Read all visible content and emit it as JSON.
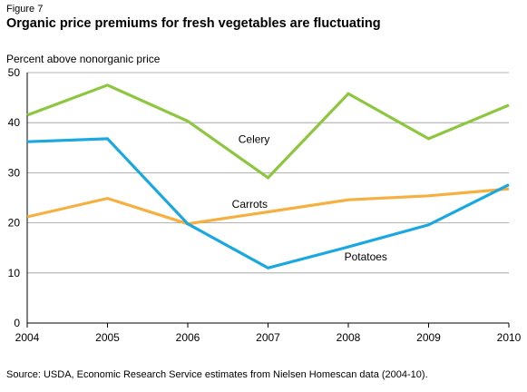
{
  "figure_label": "Figure 7",
  "title": "Organic price premiums for fresh vegetables are fluctuating",
  "source": "Source: USDA, Economic Research Service estimates from Nielsen Homescan data (2004-10).",
  "chart_data": {
    "type": "line",
    "title": "Organic price premiums for fresh vegetables are fluctuating",
    "ylabel": "Percent above nonorganic price",
    "xlabel": "",
    "x": [
      2004,
      2005,
      2006,
      2007,
      2008,
      2009,
      2010
    ],
    "ylim": [
      0,
      50
    ],
    "yticks": [
      0,
      10,
      20,
      30,
      40,
      50
    ],
    "grid": true,
    "legend": "inline",
    "series": [
      {
        "name": "Celery",
        "color": "#8dc63f",
        "values": [
          41.5,
          47.5,
          40.3,
          29.0,
          45.8,
          36.8,
          43.5
        ]
      },
      {
        "name": "Carrots",
        "color": "#f5b041",
        "values": [
          21.2,
          24.9,
          19.8,
          22.2,
          24.6,
          25.4,
          26.8
        ]
      },
      {
        "name": "Potatoes",
        "color": "#1ba8e0",
        "values": [
          36.2,
          36.8,
          19.8,
          11.0,
          15.2,
          19.6,
          27.6
        ]
      }
    ],
    "annotations": [
      {
        "text": "Celery",
        "x": 2006.63,
        "y": 36.0
      },
      {
        "text": "Carrots",
        "x": 2006.55,
        "y": 23.0
      },
      {
        "text": "Potatoes",
        "x": 2007.95,
        "y": 12.5
      }
    ]
  }
}
